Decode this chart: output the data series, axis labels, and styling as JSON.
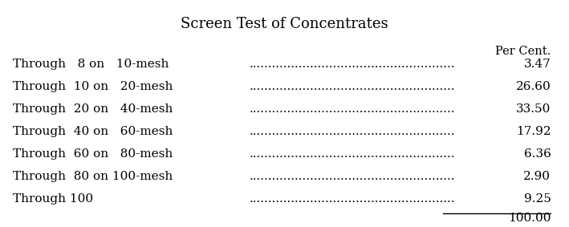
{
  "title": "Screen Test of Concentrates",
  "header_right": "Per Cent.",
  "rows": [
    {
      "label": "Through   8 on   10-mesh",
      "value": "3.47"
    },
    {
      "label": "Through  10 on   20-mesh",
      "value": "26.60"
    },
    {
      "label": "Through  20 on   40-mesh",
      "value": "33.50"
    },
    {
      "label": "Through  40 on   60-mesh",
      "value": "17.92"
    },
    {
      "label": "Through  60 on   80-mesh",
      "value": "6.36"
    },
    {
      "label": "Through  80 on 100-mesh",
      "value": "2.90"
    },
    {
      "label": "Through 100",
      "value": "9.25"
    }
  ],
  "total_value": "100.00",
  "dots": "......................................................",
  "background_color": "#ffffff",
  "text_color": "#000000",
  "title_fontsize": 13,
  "row_fontsize": 11,
  "header_fontsize": 10.5
}
